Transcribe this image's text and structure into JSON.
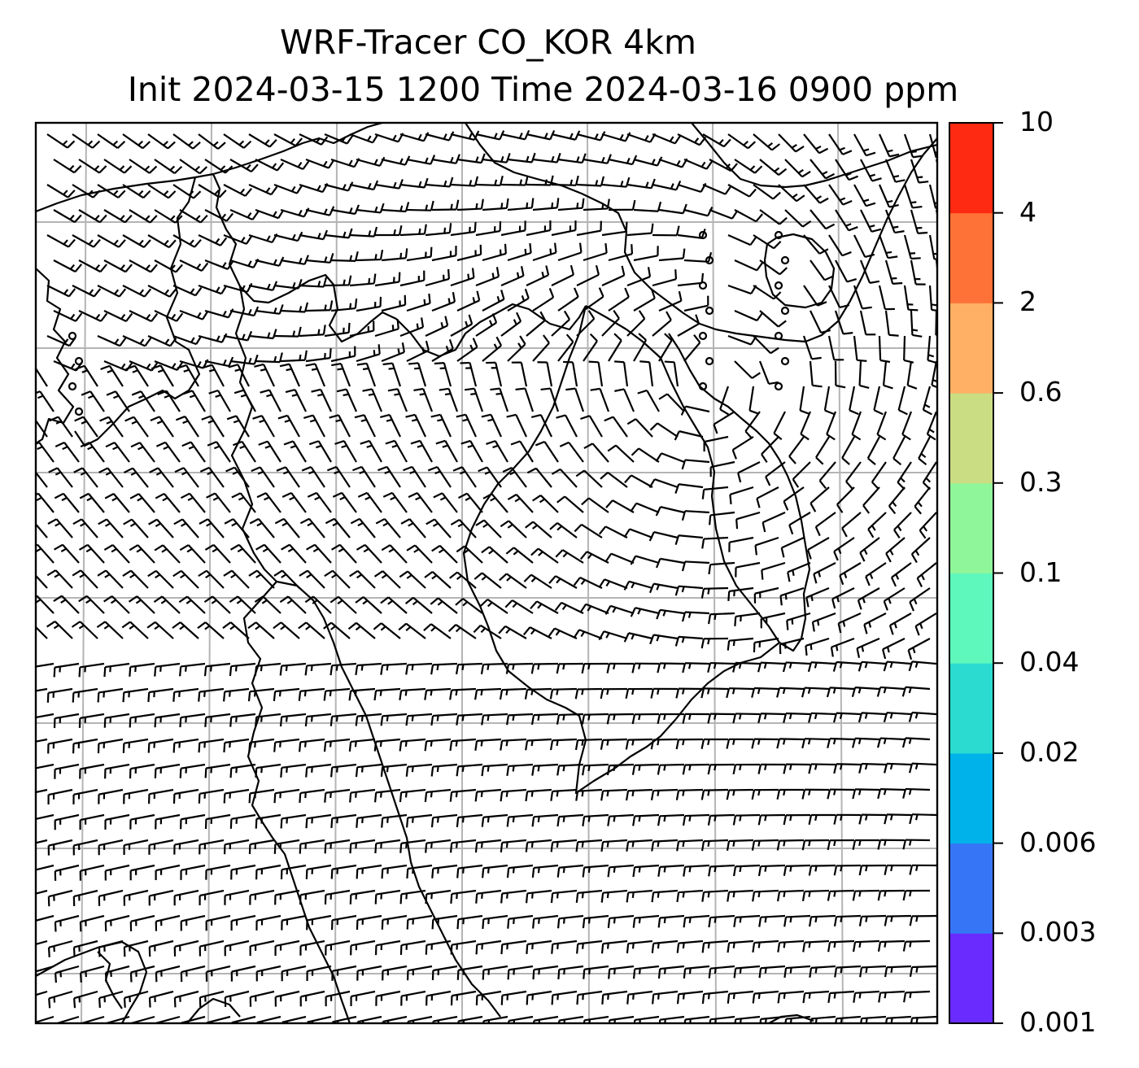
{
  "title": {
    "line1": "WRF-Tracer CO_KOR 4km",
    "line2": "Init 2024-03-15 1200 Time 2024-03-16 0900 ppm"
  },
  "map": {
    "projection_grid": true,
    "grid_color": "#b4b4b4",
    "coastline_color": "#000000",
    "barb_color": "#000000",
    "vertical_gridlines_count": 7,
    "horizontal_gridlines_count": 7
  },
  "colorbar": {
    "levels": [
      "0.001",
      "0.003",
      "0.006",
      "0.02",
      "0.04",
      "0.1",
      "0.3",
      "0.6",
      "2",
      "4",
      "10"
    ],
    "colors": [
      "#6a2bff",
      "#3675f5",
      "#00b2ea",
      "#2bdbd0",
      "#5ef8bd",
      "#8ff699",
      "#cbdd82",
      "#ffb064",
      "#ff7237",
      "#ff2a12"
    ]
  }
}
